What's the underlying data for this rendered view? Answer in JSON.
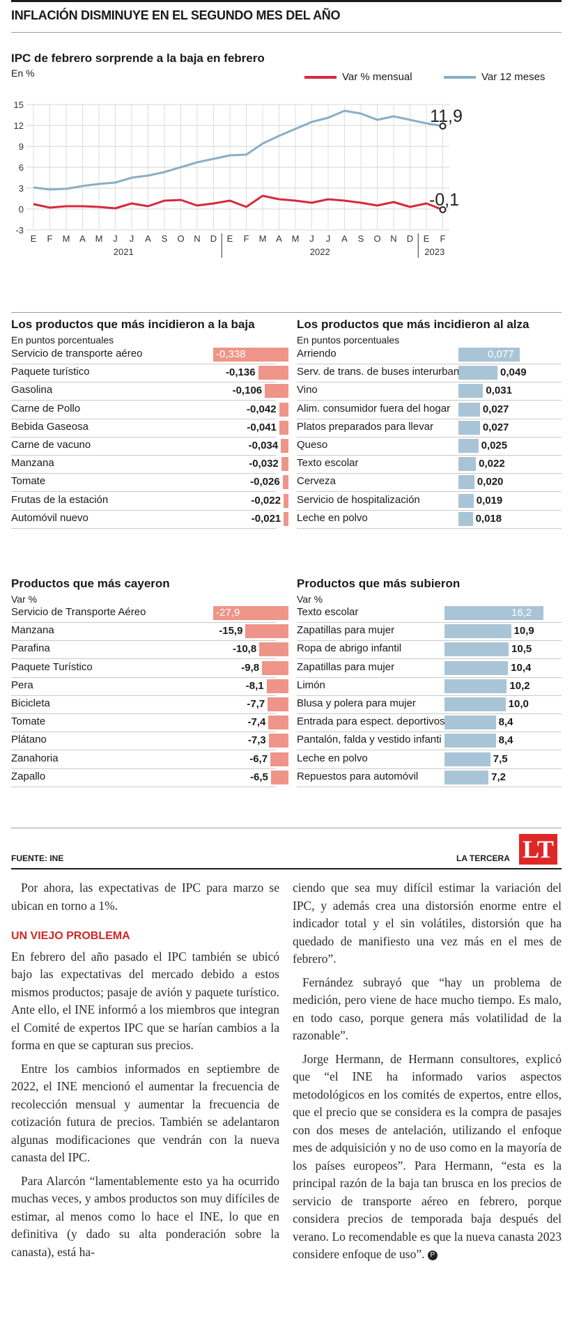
{
  "headline": "INFLACIÓN DISMINUYE EN EL SEGUNDO MES DEL AÑO",
  "colors": {
    "red": "#d8283c",
    "blue": "#8aaec4",
    "bar_red": "#ef9488",
    "bar_blue": "#a9c4d6"
  },
  "chart_data": [
    {
      "type": "line",
      "title": "IPC de febrero sorprende a la baja en febrero",
      "unit": "En %",
      "ylim": [
        -3,
        15
      ],
      "yticks": [
        "15",
        "12",
        "9",
        "6",
        "3",
        "0",
        "-3"
      ],
      "x_months": [
        "E",
        "F",
        "M",
        "A",
        "M",
        "J",
        "J",
        "A",
        "S",
        "O",
        "N",
        "D",
        "E",
        "F",
        "M",
        "A",
        "M",
        "J",
        "J",
        "A",
        "S",
        "O",
        "N",
        "D",
        "E",
        "F"
      ],
      "x_years": [
        "2021",
        "2022",
        "2023"
      ],
      "series": [
        {
          "name": "Var % mensual",
          "values": [
            0.7,
            0.2,
            0.4,
            0.4,
            0.3,
            0.1,
            0.8,
            0.4,
            1.2,
            1.3,
            0.5,
            0.8,
            1.2,
            0.3,
            1.9,
            1.4,
            1.2,
            0.9,
            1.4,
            1.2,
            0.9,
            0.5,
            1.0,
            0.3,
            0.8,
            -0.1
          ]
        },
        {
          "name": "Var 12 meses",
          "values": [
            3.1,
            2.8,
            2.9,
            3.3,
            3.6,
            3.8,
            4.5,
            4.8,
            5.3,
            6.0,
            6.7,
            7.2,
            7.7,
            7.8,
            9.4,
            10.5,
            11.5,
            12.5,
            13.1,
            14.1,
            13.7,
            12.8,
            13.3,
            12.8,
            12.3,
            11.9
          ]
        }
      ],
      "end_labels": {
        "annual": "11,9",
        "monthly": "-0,1"
      },
      "grid": true
    },
    {
      "type": "bar",
      "title": "Los productos que más incidieron a la baja",
      "unit": "En puntos porcentuales",
      "categories": [
        "Servicio de transporte aéreo",
        "Paquete turístico",
        "Gasolina",
        "Carne de Pollo",
        "Bebida Gaseosa",
        "Carne de vacuno",
        "Manzana",
        "Tomate",
        "Frutas de la estación",
        "Automóvil nuevo"
      ],
      "values": [
        -0.338,
        -0.136,
        -0.106,
        -0.042,
        -0.041,
        -0.034,
        -0.032,
        -0.026,
        -0.022,
        -0.021
      ],
      "labels": [
        "-0,338",
        "-0,136",
        "-0,106",
        "-0,042",
        "-0,041",
        "-0,034",
        "-0,032",
        "-0,026",
        "-0,022",
        "-0,021"
      ]
    },
    {
      "type": "bar",
      "title": "Los productos que más incidieron al alza",
      "unit": "En puntos porcentuales",
      "categories": [
        "Arriendo",
        "Serv. de trans. de buses interurbano",
        "Vino",
        "Alim. consumidor fuera del hogar",
        "Platos preparados para llevar",
        "Queso",
        "Texto escolar",
        "Cerveza",
        "Servicio de hospitalización",
        "Leche en polvo"
      ],
      "values": [
        0.077,
        0.049,
        0.031,
        0.027,
        0.027,
        0.025,
        0.022,
        0.02,
        0.019,
        0.018
      ],
      "labels": [
        "0,077",
        "0,049",
        "0,031",
        "0,027",
        "0,027",
        "0,025",
        "0,022",
        "0,020",
        "0,019",
        "0,018"
      ]
    },
    {
      "type": "bar",
      "title": "Productos que más cayeron",
      "unit": "Var %",
      "categories": [
        "Servicio de Transporte Aéreo",
        "Manzana",
        "Parafina",
        "Paquete Turístico",
        "Pera",
        "Bicicleta",
        "Tomate",
        "Plátano",
        "Zanahoria",
        "Zapallo"
      ],
      "values": [
        -27.9,
        -15.9,
        -10.8,
        -9.8,
        -8.1,
        -7.7,
        -7.4,
        -7.3,
        -6.7,
        -6.5
      ],
      "labels": [
        "-27,9",
        "-15,9",
        "-10,8",
        "-9,8",
        "-8,1",
        "-7,7",
        "-7,4",
        "-7,3",
        "-6,7",
        "-6,5"
      ]
    },
    {
      "type": "bar",
      "title": "Productos que más subieron",
      "unit": "Var %",
      "categories": [
        "Texto escolar",
        "Zapatillas para mujer",
        "Ropa de abrigo infantil",
        "Zapatillas para mujer",
        "Limón",
        "Blusa y polera para mujer",
        "Entrada para espect. deportivos",
        "Pantalón, falda y vestido infanti",
        "Leche en polvo",
        "Repuestos para automóvil"
      ],
      "values": [
        16.2,
        10.9,
        10.5,
        10.4,
        10.2,
        10.0,
        8.4,
        8.4,
        7.5,
        7.2
      ],
      "labels": [
        "16,2",
        "10,9",
        "10,5",
        "10,4",
        "10,2",
        "10,0",
        "8,4",
        "8,4",
        "7,5",
        "7,2"
      ]
    }
  ],
  "source": "FUENTE: INE",
  "brand": "LA TERCERA",
  "logo": "LT",
  "article": {
    "col1": {
      "p1": "Por ahora, las expectativas de IPC para marzo se ubican en torno a 1%.",
      "kicker": "UN VIEJO PROBLEMA",
      "p2": "En febrero del año pasado el IPC también se ubicó bajo las expectativas del mercado debido a estos mismos productos; pasaje de avión y paquete turístico. Ante ello, el INE informó a los miembros que integran el Comité de expertos IPC que se harían cambios a la forma en que se capturan sus precios.",
      "p3": "Entre los cambios informados en septiembre de 2022, el INE mencionó el aumentar la frecuencia de recolección mensual y aumentar la frecuencia de cotización futura de precios. También se adelantaron algunas modificaciones que vendrán con la nueva canasta del IPC.",
      "p4": "Para Alarcón “lamentablemente esto ya ha ocurrido muchas veces, y ambos productos son muy difíciles de estimar, al menos como lo hace el INE, lo que en definitiva (y dado su alta ponderación sobre la canasta), está ha-"
    },
    "col2": {
      "p1": "ciendo que sea muy difícil estimar la variación del IPC, y además crea una distorsión enorme entre el indicador total y el sin volátiles, distorsión que ha quedado de manifiesto una vez más en el mes de febrero”.",
      "p2": "Fernández subrayó que “hay un problema de medición, pero viene de hace mucho tiempo. Es malo, en todo caso, porque genera más volatilidad de la razonable”.",
      "p3": "Jorge Hermann, de Hermann consultores, explicó que “el INE ha informado varios aspectos metodológicos en los comités de expertos, entre ellos, que el precio que se considera es la compra de pasajes con dos meses de antelación, utilizando el enfoque mes de adquisición y no de uso como en la mayoría de los países europeos”. Para Hermann, “esta es la principal razón de la baja tan brusca en los precios de servicio de transporte aéreo en febrero, porque considera precios de temporada baja después del verano. Lo recomendable es que la nueva canasta 2023 considere enfoque de uso”.",
      "endmark": "P"
    }
  }
}
